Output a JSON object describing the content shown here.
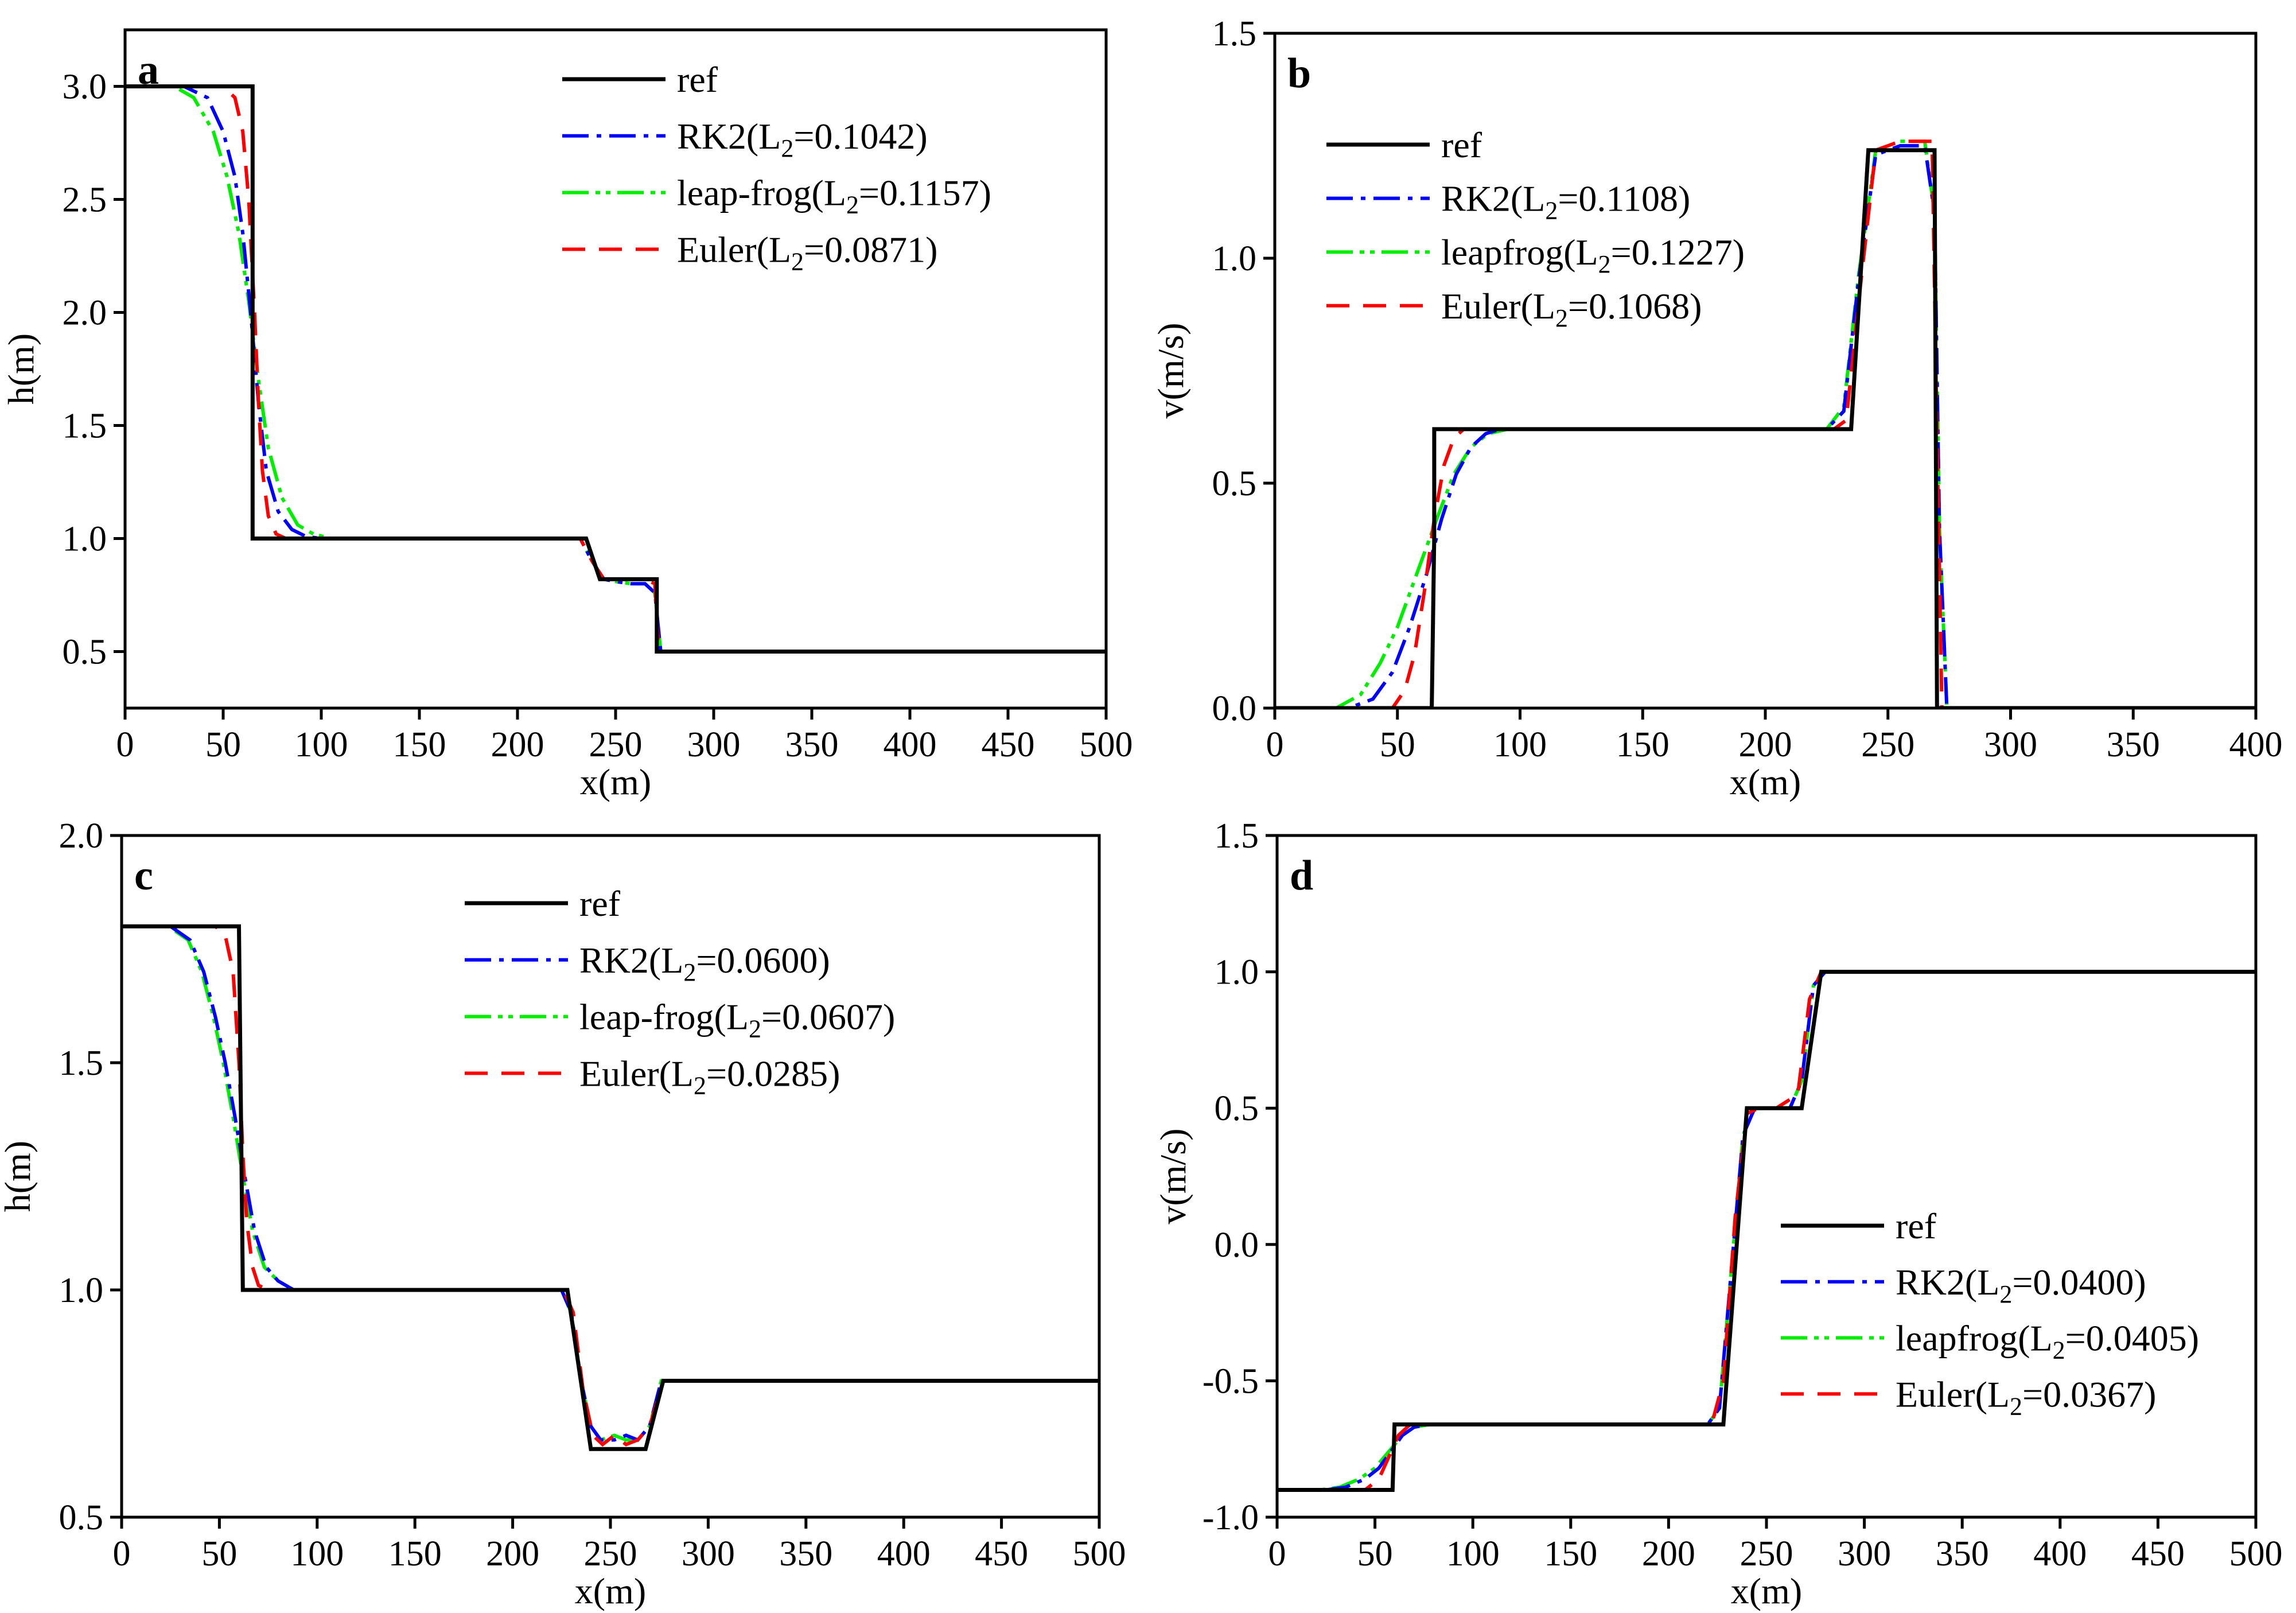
{
  "figure": {
    "line_colors": {
      "ref": "#000000",
      "rk2": "#0000ff",
      "leapfrog": "#00ee00",
      "euler": "#ff0000"
    }
  },
  "chart_data": [
    {
      "panel": "a",
      "type": "line",
      "xlabel": "x(m)",
      "ylabel": "h(m)",
      "xlim": [
        0,
        500
      ],
      "ylim": [
        0.25,
        3.25
      ],
      "xticks": [
        0,
        50,
        100,
        150,
        200,
        250,
        300,
        350,
        400,
        450,
        500
      ],
      "yticks": [
        0.5,
        1.0,
        1.5,
        2.0,
        2.5,
        3.0
      ],
      "ytick_labels": [
        "0.5",
        "1.0",
        "1.5",
        "2.0",
        "2.5",
        "3.0"
      ],
      "legend_position": "top-right",
      "legend": [
        {
          "key": "ref",
          "base": "ref",
          "sub": "",
          "tail": ""
        },
        {
          "key": "rk2",
          "base": "RK2(L",
          "sub": "2",
          "tail": "=0.1042)"
        },
        {
          "key": "leapfrog",
          "base": "leap-frog(L",
          "sub": "2",
          "tail": "=0.1157)"
        },
        {
          "key": "euler",
          "base": "Euler(L",
          "sub": "2",
          "tail": "=0.0871)"
        }
      ],
      "series": [
        {
          "key": "ref",
          "name": "ref",
          "x": [
            0,
            65,
            65,
            235,
            242,
            271,
            271,
            500
          ],
          "y": [
            3.0,
            3.0,
            1.0,
            1.0,
            0.82,
            0.82,
            0.5,
            0.5
          ]
        },
        {
          "key": "rk2",
          "name": "RK2",
          "x": [
            0,
            30,
            42,
            50,
            56,
            60,
            64,
            68,
            72,
            78,
            85,
            92,
            100,
            232,
            238,
            244,
            250,
            258,
            265,
            270,
            273,
            500
          ],
          "y": [
            3.0,
            3.0,
            2.95,
            2.8,
            2.6,
            2.35,
            2.0,
            1.6,
            1.3,
            1.12,
            1.04,
            1.01,
            1.0,
            1.0,
            0.9,
            0.82,
            0.81,
            0.8,
            0.8,
            0.76,
            0.5,
            0.5
          ]
        },
        {
          "key": "leapfrog",
          "name": "leap-frog",
          "x": [
            0,
            25,
            35,
            45,
            52,
            58,
            63,
            68,
            73,
            80,
            88,
            96,
            105,
            232,
            238,
            244,
            250,
            258,
            265,
            270,
            273,
            500
          ],
          "y": [
            3.0,
            3.0,
            2.95,
            2.8,
            2.6,
            2.35,
            2.05,
            1.7,
            1.4,
            1.18,
            1.06,
            1.02,
            1.0,
            1.0,
            0.9,
            0.82,
            0.81,
            0.8,
            0.8,
            0.76,
            0.5,
            0.5
          ]
        },
        {
          "key": "euler",
          "name": "Euler",
          "x": [
            0,
            50,
            56,
            60,
            63,
            66,
            68,
            70,
            73,
            77,
            82,
            232,
            238,
            244,
            250,
            258,
            265,
            270,
            272,
            500
          ],
          "y": [
            3.0,
            3.0,
            2.95,
            2.8,
            2.5,
            2.0,
            1.6,
            1.3,
            1.1,
            1.02,
            1.0,
            1.0,
            0.9,
            0.82,
            0.82,
            0.82,
            0.82,
            0.8,
            0.5,
            0.5
          ]
        }
      ]
    },
    {
      "panel": "b",
      "type": "line",
      "xlabel": "x(m)",
      "ylabel": "v(m/s)",
      "xlim": [
        0,
        400
      ],
      "ylim": [
        0.0,
        1.5
      ],
      "xticks": [
        0,
        50,
        100,
        150,
        200,
        250,
        300,
        350,
        400
      ],
      "yticks": [
        0.0,
        0.5,
        1.0,
        1.5
      ],
      "ytick_labels": [
        "0.0",
        "0.5",
        "1.0",
        "1.5"
      ],
      "legend_position": "top-left",
      "legend": [
        {
          "key": "ref",
          "base": "ref",
          "sub": "",
          "tail": ""
        },
        {
          "key": "rk2",
          "base": "RK2(L",
          "sub": "2",
          "tail": "=0.1108)"
        },
        {
          "key": "leapfrog",
          "base": "leapfrog(L",
          "sub": "2",
          "tail": "=0.1227)"
        },
        {
          "key": "euler",
          "base": "Euler(L",
          "sub": "2",
          "tail": "=0.1068)"
        }
      ],
      "series": [
        {
          "key": "ref",
          "name": "ref",
          "x": [
            0,
            64,
            65,
            65,
            235,
            242,
            269,
            270,
            400
          ],
          "y": [
            0.0,
            0.0,
            0.38,
            0.62,
            0.62,
            1.24,
            1.24,
            0.0,
            0.0
          ]
        },
        {
          "key": "rk2",
          "name": "RK2",
          "x": [
            0,
            30,
            40,
            48,
            55,
            62,
            68,
            74,
            80,
            86,
            92,
            100,
            225,
            232,
            238,
            245,
            255,
            265,
            269,
            271,
            274,
            400
          ],
          "y": [
            0.0,
            0.0,
            0.02,
            0.08,
            0.18,
            0.3,
            0.42,
            0.52,
            0.58,
            0.61,
            0.62,
            0.62,
            0.62,
            0.66,
            0.95,
            1.23,
            1.25,
            1.25,
            1.1,
            0.4,
            0.0,
            0.0
          ]
        },
        {
          "key": "leapfrog",
          "name": "leapfrog",
          "x": [
            0,
            25,
            35,
            43,
            50,
            58,
            66,
            73,
            80,
            87,
            95,
            105,
            225,
            232,
            238,
            245,
            255,
            265,
            269,
            271,
            274,
            400
          ],
          "y": [
            0.0,
            0.0,
            0.03,
            0.1,
            0.18,
            0.3,
            0.42,
            0.52,
            0.58,
            0.61,
            0.62,
            0.62,
            0.62,
            0.67,
            0.96,
            1.24,
            1.26,
            1.26,
            1.1,
            0.4,
            0.0,
            0.0
          ]
        },
        {
          "key": "euler",
          "name": "Euler",
          "x": [
            0,
            48,
            53,
            57,
            61,
            65,
            69,
            73,
            77,
            82,
            88,
            228,
            233,
            238,
            245,
            255,
            268,
            270,
            272,
            400
          ],
          "y": [
            0.0,
            0.0,
            0.04,
            0.12,
            0.26,
            0.42,
            0.54,
            0.6,
            0.62,
            0.62,
            0.62,
            0.62,
            0.64,
            0.9,
            1.24,
            1.26,
            1.26,
            0.6,
            0.0,
            0.0
          ]
        }
      ]
    },
    {
      "panel": "c",
      "type": "line",
      "xlabel": "x(m)",
      "ylabel": "h(m)",
      "xlim": [
        0,
        500
      ],
      "ylim": [
        0.5,
        2.0
      ],
      "xticks": [
        0,
        50,
        100,
        150,
        200,
        250,
        300,
        350,
        400,
        450,
        500
      ],
      "yticks": [
        0.5,
        1.0,
        1.5,
        2.0
      ],
      "ytick_labels": [
        "0.5",
        "1.0",
        "1.5",
        "2.0"
      ],
      "legend_position": "top-right",
      "legend": [
        {
          "key": "ref",
          "base": "ref",
          "sub": "",
          "tail": ""
        },
        {
          "key": "rk2",
          "base": "RK2(L",
          "sub": "2",
          "tail": "=0.0600)"
        },
        {
          "key": "leapfrog",
          "base": "leap-frog(L",
          "sub": "2",
          "tail": "=0.0607)"
        },
        {
          "key": "euler",
          "base": "Euler(L",
          "sub": "2",
          "tail": "=0.0285)"
        }
      ],
      "series": [
        {
          "key": "ref",
          "name": "ref",
          "x": [
            0,
            60,
            62,
            228,
            240,
            268,
            277,
            500
          ],
          "y": [
            1.8,
            1.8,
            1.0,
            1.0,
            0.65,
            0.65,
            0.8,
            0.8
          ]
        },
        {
          "key": "rk2",
          "name": "RK2",
          "x": [
            0,
            25,
            35,
            42,
            48,
            53,
            58,
            63,
            68,
            74,
            80,
            88,
            98,
            225,
            230,
            235,
            240,
            245,
            252,
            258,
            264,
            270,
            276,
            500
          ],
          "y": [
            1.8,
            1.8,
            1.77,
            1.7,
            1.6,
            1.5,
            1.38,
            1.25,
            1.13,
            1.05,
            1.02,
            1.0,
            1.0,
            1.0,
            0.95,
            0.8,
            0.7,
            0.67,
            0.67,
            0.68,
            0.67,
            0.7,
            0.8,
            0.8
          ]
        },
        {
          "key": "leapfrog",
          "name": "leap-frog",
          "x": [
            0,
            24,
            34,
            41,
            47,
            52,
            57,
            62,
            67,
            73,
            80,
            88,
            98,
            225,
            230,
            235,
            240,
            245,
            252,
            258,
            264,
            270,
            276,
            500
          ],
          "y": [
            1.8,
            1.8,
            1.77,
            1.7,
            1.6,
            1.5,
            1.38,
            1.25,
            1.13,
            1.05,
            1.02,
            1.0,
            1.0,
            1.0,
            0.95,
            0.8,
            0.7,
            0.67,
            0.68,
            0.67,
            0.67,
            0.7,
            0.8,
            0.8
          ]
        },
        {
          "key": "euler",
          "name": "Euler",
          "x": [
            0,
            48,
            53,
            57,
            60,
            62,
            64,
            67,
            70,
            75,
            226,
            231,
            236,
            241,
            246,
            252,
            258,
            264,
            270,
            277,
            500
          ],
          "y": [
            1.8,
            1.8,
            1.78,
            1.7,
            1.5,
            1.3,
            1.15,
            1.05,
            1.01,
            1.0,
            1.0,
            0.95,
            0.78,
            0.68,
            0.66,
            0.68,
            0.66,
            0.67,
            0.7,
            0.8,
            0.8
          ]
        }
      ]
    },
    {
      "panel": "d",
      "type": "line",
      "xlabel": "x(m)",
      "ylabel": "v(m/s)",
      "xlim": [
        0,
        500
      ],
      "ylim": [
        -1.0,
        1.5
      ],
      "xticks": [
        0,
        50,
        100,
        150,
        200,
        250,
        300,
        350,
        400,
        450,
        500
      ],
      "yticks": [
        -1.0,
        -0.5,
        0.0,
        0.5,
        1.0,
        1.5
      ],
      "ytick_labels": [
        "-1.0",
        "-0.5",
        "0.0",
        "0.5",
        "1.0",
        "1.5"
      ],
      "legend_position": "bottom-right",
      "legend": [
        {
          "key": "ref",
          "base": "ref",
          "sub": "",
          "tail": ""
        },
        {
          "key": "rk2",
          "base": "RK2(L",
          "sub": "2",
          "tail": "=0.0400)"
        },
        {
          "key": "leapfrog",
          "base": "leapfrog(L",
          "sub": "2",
          "tail": "=0.0405)"
        },
        {
          "key": "euler",
          "base": "Euler(L",
          "sub": "2",
          "tail": "=0.0367)"
        }
      ],
      "series": [
        {
          "key": "ref",
          "name": "ref",
          "x": [
            0,
            59,
            60,
            228,
            240,
            268,
            278,
            500
          ],
          "y": [
            -0.9,
            -0.9,
            -0.66,
            -0.66,
            0.5,
            0.5,
            1.0,
            1.0
          ]
        },
        {
          "key": "rk2",
          "name": "RK2",
          "x": [
            0,
            25,
            35,
            45,
            52,
            58,
            64,
            70,
            78,
            220,
            226,
            232,
            238,
            244,
            252,
            262,
            268,
            274,
            280,
            500
          ],
          "y": [
            -0.9,
            -0.9,
            -0.89,
            -0.86,
            -0.82,
            -0.76,
            -0.7,
            -0.67,
            -0.66,
            -0.66,
            -0.6,
            -0.1,
            0.4,
            0.5,
            0.5,
            0.5,
            0.6,
            0.95,
            1.0,
            1.0
          ]
        },
        {
          "key": "leapfrog",
          "name": "leapfrog",
          "x": [
            0,
            22,
            32,
            42,
            50,
            57,
            64,
            70,
            78,
            220,
            226,
            232,
            238,
            244,
            252,
            262,
            268,
            274,
            280,
            500
          ],
          "y": [
            -0.9,
            -0.9,
            -0.89,
            -0.86,
            -0.82,
            -0.76,
            -0.7,
            -0.67,
            -0.66,
            -0.66,
            -0.6,
            -0.1,
            0.4,
            0.5,
            0.5,
            0.5,
            0.6,
            0.95,
            1.0,
            1.0
          ]
        },
        {
          "key": "euler",
          "name": "Euler",
          "x": [
            0,
            45,
            52,
            57,
            62,
            68,
            75,
            222,
            228,
            234,
            240,
            246,
            255,
            266,
            272,
            278,
            500
          ],
          "y": [
            -0.9,
            -0.9,
            -0.86,
            -0.78,
            -0.7,
            -0.66,
            -0.66,
            -0.66,
            -0.5,
            0.1,
            0.48,
            0.5,
            0.5,
            0.55,
            0.9,
            1.0,
            1.0
          ]
        }
      ]
    }
  ]
}
